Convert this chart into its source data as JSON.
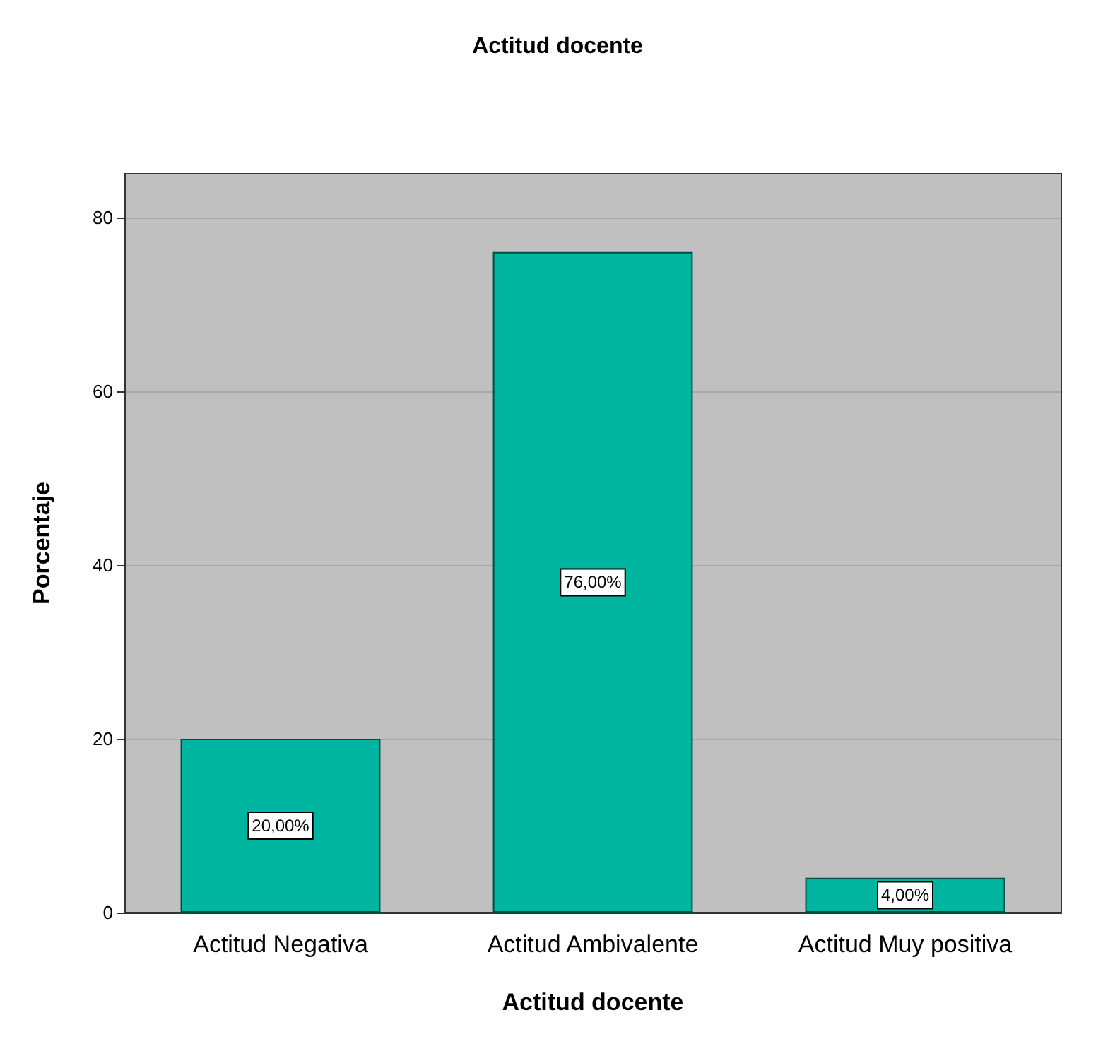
{
  "chart_data": {
    "type": "bar",
    "title": "Actitud docente",
    "xlabel": "Actitud docente",
    "ylabel": "Porcentaje",
    "categories": [
      "Actitud Negativa",
      "Actitud Ambivalente",
      "Actitud Muy positiva"
    ],
    "values": [
      20,
      76,
      4
    ],
    "value_labels": [
      "20,00%",
      "76,00%",
      "4,00%"
    ],
    "color": "#00b5a0",
    "ylim": [
      0,
      85
    ],
    "yticks": [
      0,
      20,
      40,
      60,
      80
    ],
    "grid": "y"
  }
}
